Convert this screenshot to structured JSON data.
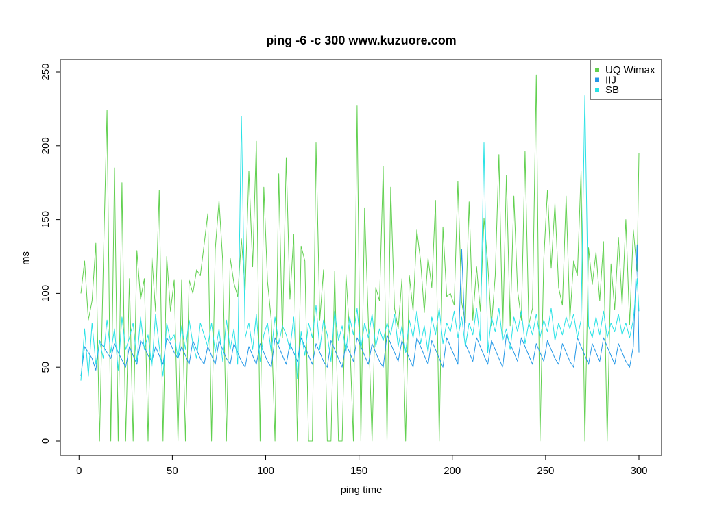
{
  "chart_data": {
    "type": "line",
    "title": "ping -6 -c 300 www.kuzuore.com",
    "xlabel": "ping time",
    "ylabel": "ms",
    "xlim": [
      1,
      300
    ],
    "ylim": [
      0,
      250
    ],
    "x_ticks": [
      0,
      50,
      100,
      150,
      200,
      250,
      300
    ],
    "y_ticks": [
      0,
      50,
      100,
      150,
      200,
      250
    ],
    "legend_position": "top-right",
    "grid": false,
    "series": [
      {
        "name": "UQ Wimax",
        "color": "#61d04f",
        "x": [
          1,
          3,
          5,
          7,
          9,
          11,
          13,
          15,
          17,
          19,
          21,
          23,
          25,
          27,
          29,
          31,
          33,
          35,
          37,
          39,
          41,
          43,
          45,
          47,
          49,
          51,
          53,
          55,
          57,
          59,
          61,
          63,
          65,
          67,
          69,
          71,
          73,
          75,
          77,
          79,
          81,
          83,
          85,
          87,
          89,
          91,
          93,
          95,
          97,
          99,
          101,
          103,
          105,
          107,
          109,
          111,
          113,
          115,
          117,
          119,
          121,
          123,
          125,
          127,
          129,
          131,
          133,
          135,
          137,
          139,
          141,
          143,
          145,
          147,
          149,
          151,
          153,
          155,
          157,
          159,
          161,
          163,
          165,
          167,
          169,
          171,
          173,
          175,
          177,
          179,
          181,
          183,
          185,
          187,
          189,
          191,
          193,
          195,
          197,
          199,
          201,
          203,
          205,
          207,
          209,
          211,
          213,
          215,
          217,
          219,
          221,
          223,
          225,
          227,
          229,
          231,
          233,
          235,
          237,
          239,
          241,
          243,
          245,
          247,
          249,
          251,
          253,
          255,
          257,
          259,
          261,
          263,
          265,
          267,
          269,
          271,
          273,
          275,
          277,
          279,
          281,
          283,
          285,
          287,
          289,
          291,
          293,
          295,
          297,
          299,
          300
        ],
        "values": [
          100,
          122,
          82,
          95,
          134,
          0,
          120,
          224,
          0,
          185,
          0,
          175,
          0,
          110,
          0,
          129,
          96,
          110,
          0,
          125,
          88,
          170,
          0,
          125,
          88,
          109,
          0,
          109,
          0,
          109,
          100,
          116,
          112,
          133,
          154,
          0,
          130,
          163,
          122,
          0,
          124,
          107,
          98,
          137,
          102,
          183,
          118,
          203,
          0,
          172,
          108,
          82,
          0,
          181,
          70,
          192,
          96,
          140,
          0,
          132,
          122,
          0,
          0,
          202,
          82,
          116,
          0,
          0,
          115,
          0,
          0,
          113,
          72,
          0,
          227,
          0,
          158,
          81,
          0,
          104,
          95,
          186,
          0,
          172,
          90,
          76,
          110,
          0,
          112,
          88,
          143,
          122,
          87,
          124,
          104,
          163,
          0,
          145,
          98,
          100,
          92,
          176,
          94,
          80,
          162,
          82,
          118,
          88,
          151,
          120,
          78,
          112,
          194,
          72,
          180,
          78,
          166,
          102,
          82,
          196,
          79,
          90,
          248,
          0,
          123,
          170,
          117,
          161,
          104,
          92,
          166,
          82,
          122,
          112,
          183,
          0,
          131,
          106,
          128,
          95,
          135,
          0,
          120,
          89,
          138,
          92,
          150,
          79,
          143,
          115,
          195
        ]
      },
      {
        "name": "IIJ",
        "color": "#2297e6",
        "x": [
          1,
          3,
          5,
          7,
          9,
          11,
          13,
          15,
          17,
          19,
          21,
          23,
          25,
          27,
          29,
          31,
          33,
          35,
          37,
          39,
          41,
          43,
          45,
          47,
          49,
          51,
          53,
          55,
          57,
          59,
          61,
          63,
          65,
          67,
          69,
          71,
          73,
          75,
          77,
          79,
          81,
          83,
          85,
          87,
          89,
          91,
          93,
          95,
          97,
          99,
          101,
          103,
          105,
          107,
          109,
          111,
          113,
          115,
          117,
          119,
          121,
          123,
          125,
          127,
          129,
          131,
          133,
          135,
          137,
          139,
          141,
          143,
          145,
          147,
          149,
          151,
          153,
          155,
          157,
          159,
          161,
          163,
          165,
          167,
          169,
          171,
          173,
          175,
          177,
          179,
          181,
          183,
          185,
          187,
          189,
          191,
          193,
          195,
          197,
          199,
          201,
          203,
          205,
          207,
          209,
          211,
          213,
          215,
          217,
          219,
          221,
          223,
          225,
          227,
          229,
          231,
          233,
          235,
          237,
          239,
          241,
          243,
          245,
          247,
          249,
          251,
          253,
          255,
          257,
          259,
          261,
          263,
          265,
          267,
          269,
          271,
          273,
          275,
          277,
          279,
          281,
          283,
          285,
          287,
          289,
          291,
          293,
          295,
          297,
          299,
          300
        ],
        "values": [
          44,
          64,
          60,
          56,
          48,
          68,
          64,
          60,
          56,
          66,
          60,
          55,
          50,
          64,
          58,
          52,
          68,
          64,
          58,
          54,
          64,
          58,
          52,
          70,
          66,
          60,
          56,
          64,
          58,
          52,
          68,
          62,
          56,
          52,
          64,
          58,
          52,
          68,
          62,
          56,
          52,
          66,
          60,
          54,
          50,
          64,
          58,
          52,
          66,
          60,
          54,
          50,
          70,
          64,
          58,
          52,
          66,
          60,
          54,
          70,
          64,
          58,
          52,
          66,
          60,
          54,
          50,
          68,
          62,
          56,
          50,
          66,
          60,
          54,
          70,
          64,
          58,
          52,
          66,
          60,
          54,
          50,
          72,
          66,
          60,
          54,
          68,
          62,
          56,
          50,
          70,
          64,
          58,
          52,
          68,
          62,
          56,
          50,
          70,
          64,
          58,
          52,
          130,
          66,
          60,
          54,
          70,
          64,
          58,
          52,
          68,
          62,
          56,
          50,
          72,
          66,
          60,
          54,
          70,
          64,
          58,
          52,
          66,
          60,
          54,
          68,
          62,
          56,
          52,
          66,
          60,
          54,
          50,
          70,
          64,
          58,
          52,
          66,
          60,
          54,
          70,
          64,
          58,
          52,
          66,
          60,
          54,
          50,
          64,
          133,
          60
        ]
      },
      {
        "name": "SB",
        "color": "#28e2e5",
        "x": [
          1,
          3,
          5,
          7,
          9,
          11,
          13,
          15,
          17,
          19,
          21,
          23,
          25,
          27,
          29,
          31,
          33,
          35,
          37,
          39,
          41,
          43,
          45,
          47,
          49,
          51,
          53,
          55,
          57,
          59,
          61,
          63,
          65,
          67,
          69,
          71,
          73,
          75,
          77,
          79,
          81,
          83,
          85,
          87,
          89,
          91,
          93,
          95,
          97,
          99,
          101,
          103,
          105,
          107,
          109,
          111,
          113,
          115,
          117,
          119,
          121,
          123,
          125,
          127,
          129,
          131,
          133,
          135,
          137,
          139,
          141,
          143,
          145,
          147,
          149,
          151,
          153,
          155,
          157,
          159,
          161,
          163,
          165,
          167,
          169,
          171,
          173,
          175,
          177,
          179,
          181,
          183,
          185,
          187,
          189,
          191,
          193,
          195,
          197,
          199,
          201,
          203,
          205,
          207,
          209,
          211,
          213,
          215,
          217,
          219,
          221,
          223,
          225,
          227,
          229,
          231,
          233,
          235,
          237,
          239,
          241,
          243,
          245,
          247,
          249,
          251,
          253,
          255,
          257,
          259,
          261,
          263,
          265,
          267,
          269,
          271,
          273,
          275,
          277,
          279,
          281,
          283,
          285,
          287,
          289,
          291,
          293,
          295,
          297,
          299,
          300
        ],
        "values": [
          41,
          76,
          44,
          80,
          52,
          68,
          56,
          82,
          60,
          76,
          48,
          84,
          62,
          70,
          80,
          54,
          84,
          62,
          72,
          50,
          86,
          64,
          44,
          80,
          68,
          72,
          56,
          78,
          62,
          82,
          66,
          56,
          80,
          72,
          64,
          80,
          60,
          76,
          54,
          82,
          62,
          76,
          52,
          220,
          70,
          80,
          62,
          86,
          54,
          72,
          80,
          60,
          84,
          66,
          78,
          72,
          62,
          84,
          42,
          74,
          58,
          80,
          70,
          92,
          62,
          82,
          72,
          54,
          88,
          68,
          78,
          60,
          84,
          72,
          90,
          62,
          80,
          70,
          86,
          64,
          76,
          68,
          80,
          72,
          86,
          64,
          78,
          60,
          82,
          70,
          88,
          66,
          78,
          60,
          84,
          72,
          90,
          66,
          80,
          74,
          88,
          70,
          84,
          64,
          80,
          72,
          90,
          68,
          202,
          60,
          84,
          74,
          90,
          68,
          76,
          62,
          84,
          74,
          88,
          66,
          80,
          72,
          86,
          70,
          82,
          74,
          90,
          68,
          80,
          72,
          84,
          76,
          86,
          70,
          82,
          234,
          78,
          70,
          84,
          72,
          88,
          70,
          80,
          74,
          86,
          72,
          80,
          70,
          82,
          110,
          88
        ]
      }
    ]
  }
}
